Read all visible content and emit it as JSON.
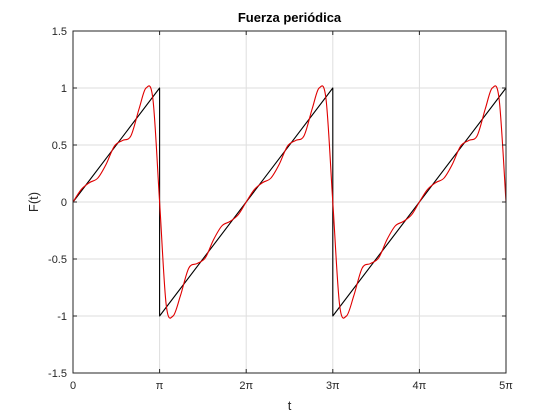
{
  "chart_data": {
    "type": "line",
    "title": "Fuerza periódica",
    "xlabel": "t",
    "ylabel": "F(t)",
    "xlim": [
      0,
      15.70796
    ],
    "ylim": [
      -1.5,
      1.5
    ],
    "grid": true,
    "legend": "none",
    "x_ticks": [
      {
        "value": 0,
        "label": "0"
      },
      {
        "value": 3.14159,
        "label": "π"
      },
      {
        "value": 6.28319,
        "label": "2π"
      },
      {
        "value": 9.42478,
        "label": "3π"
      },
      {
        "value": 12.56637,
        "label": "4π"
      },
      {
        "value": 15.70796,
        "label": "5π"
      }
    ],
    "y_ticks": [
      {
        "value": -1.5,
        "label": "-1.5"
      },
      {
        "value": -1,
        "label": "-1"
      },
      {
        "value": -0.5,
        "label": "-0.5"
      },
      {
        "value": 0,
        "label": "0"
      },
      {
        "value": 0.5,
        "label": "0.5"
      },
      {
        "value": 1,
        "label": "1"
      },
      {
        "value": 1.5,
        "label": "1.5"
      }
    ],
    "series": [
      {
        "color": "#000000",
        "points": [
          [
            0,
            0
          ],
          [
            3.14159,
            1
          ],
          [
            3.14159,
            -1
          ],
          [
            9.42478,
            1
          ],
          [
            9.42478,
            -1
          ],
          [
            15.70796,
            1
          ]
        ]
      },
      {
        "color": "#e00000",
        "points": [
          [
            0.0,
            0.0
          ],
          [
            0.3,
            0.11
          ],
          [
            0.6,
            0.17
          ],
          [
            0.9,
            0.21
          ],
          [
            1.2,
            0.33
          ],
          [
            1.5,
            0.49
          ],
          [
            1.8,
            0.54
          ],
          [
            2.1,
            0.58
          ],
          [
            2.4,
            0.82
          ],
          [
            2.65,
            1.0
          ],
          [
            2.9,
            0.9
          ],
          [
            3.14159,
            0.0
          ],
          [
            3.38,
            -0.9
          ],
          [
            3.63,
            -1.0
          ],
          [
            3.9,
            -0.82
          ],
          [
            4.2,
            -0.58
          ],
          [
            4.5,
            -0.54
          ],
          [
            4.8,
            -0.49
          ],
          [
            5.1,
            -0.33
          ],
          [
            5.4,
            -0.21
          ],
          [
            5.7,
            -0.17
          ],
          [
            6.0,
            -0.11
          ],
          [
            6.28319,
            0.0
          ],
          [
            6.58,
            0.11
          ],
          [
            6.88,
            0.17
          ],
          [
            7.18,
            0.21
          ],
          [
            7.48,
            0.33
          ],
          [
            7.78,
            0.49
          ],
          [
            8.08,
            0.54
          ],
          [
            8.38,
            0.58
          ],
          [
            8.68,
            0.82
          ],
          [
            8.93,
            1.0
          ],
          [
            9.18,
            0.9
          ],
          [
            9.42478,
            0.0
          ],
          [
            9.67,
            -0.9
          ],
          [
            9.92,
            -1.0
          ],
          [
            10.19,
            -0.82
          ],
          [
            10.49,
            -0.58
          ],
          [
            10.79,
            -0.54
          ],
          [
            11.09,
            -0.49
          ],
          [
            11.39,
            -0.33
          ],
          [
            11.69,
            -0.21
          ],
          [
            11.99,
            -0.17
          ],
          [
            12.29,
            -0.11
          ],
          [
            12.56637,
            0.0
          ],
          [
            12.86,
            0.11
          ],
          [
            13.16,
            0.17
          ],
          [
            13.46,
            0.21
          ],
          [
            13.76,
            0.33
          ],
          [
            14.06,
            0.49
          ],
          [
            14.36,
            0.54
          ],
          [
            14.66,
            0.58
          ],
          [
            14.96,
            0.82
          ],
          [
            15.21,
            1.0
          ],
          [
            15.46,
            0.9
          ],
          [
            15.70796,
            0.0
          ]
        ]
      }
    ]
  }
}
